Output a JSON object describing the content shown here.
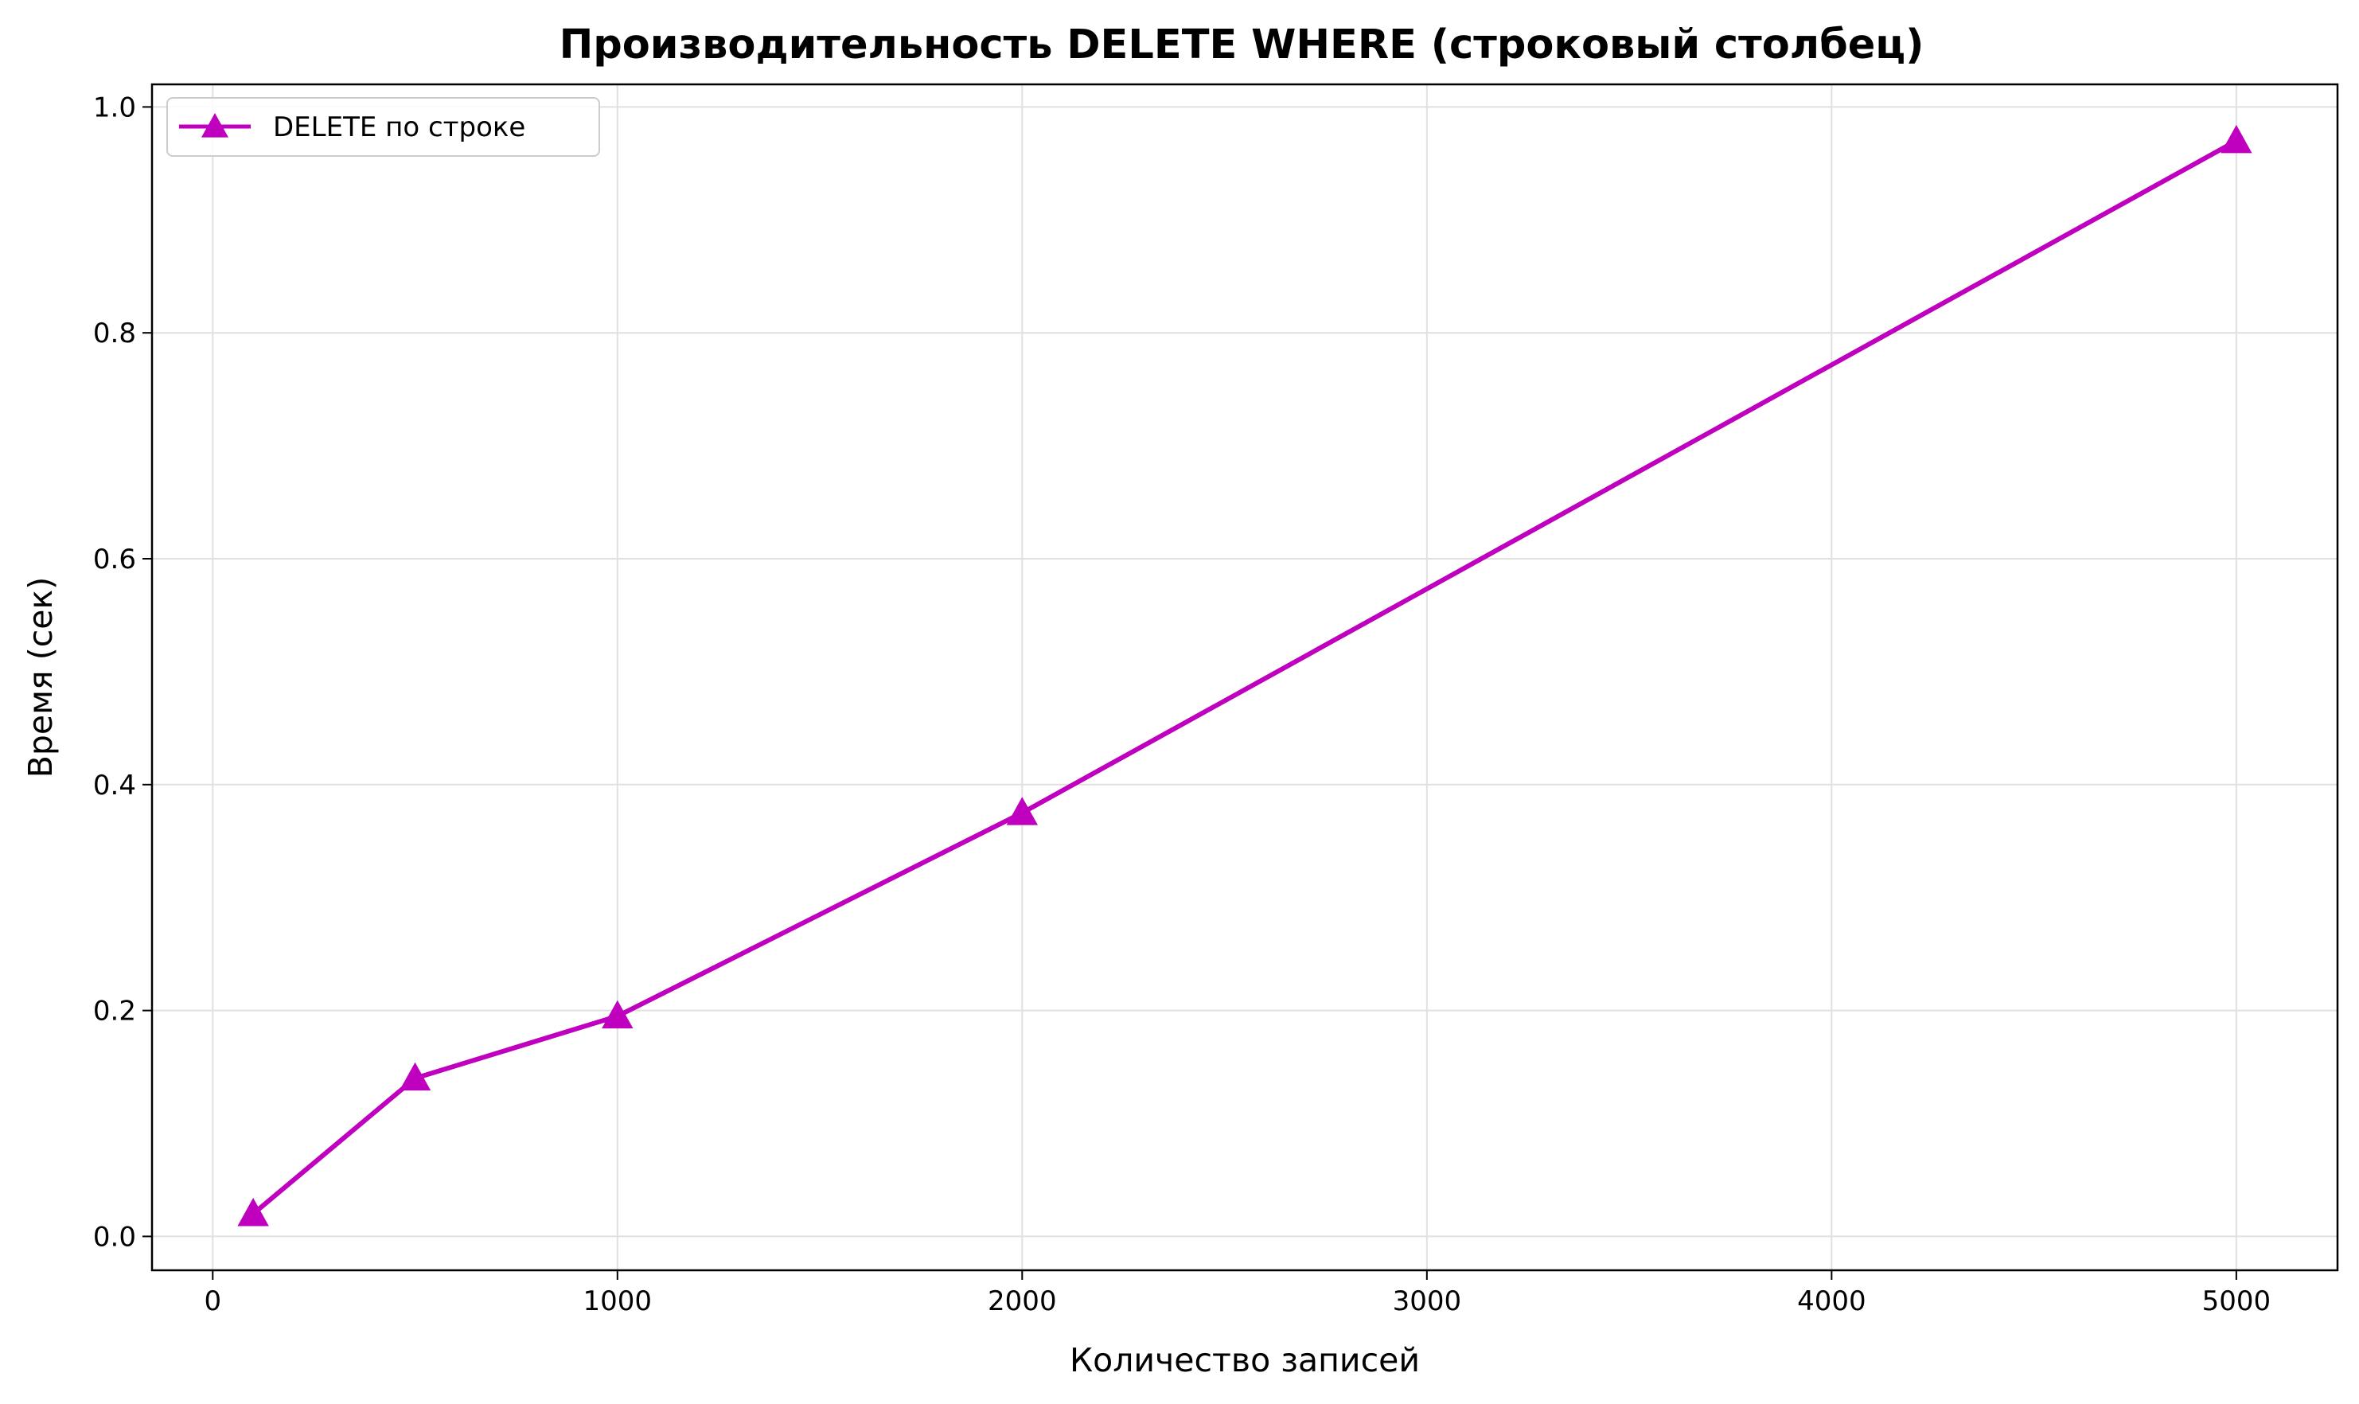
{
  "chart_data": {
    "type": "line",
    "title": "Производительность DELETE WHERE (строковый столбец)",
    "xlabel": "Количество записей",
    "ylabel": "Время (сек)",
    "xlim": [
      -150,
      5250
    ],
    "ylim": [
      -0.03,
      1.02
    ],
    "xticks": [
      0,
      1000,
      2000,
      3000,
      4000,
      5000
    ],
    "yticks": [
      0.0,
      0.2,
      0.4,
      0.6,
      0.8,
      1.0
    ],
    "xtick_labels": [
      "0",
      "1000",
      "2000",
      "3000",
      "4000",
      "5000"
    ],
    "ytick_labels": [
      "0.0",
      "0.2",
      "0.4",
      "0.6",
      "0.8",
      "1.0"
    ],
    "grid": true,
    "legend_position": "top-left",
    "series": [
      {
        "name": "DELETE по строке",
        "color": "#bf00bf",
        "marker": "triangle-up",
        "x": [
          100,
          500,
          1000,
          2000,
          5000
        ],
        "y": [
          0.02,
          0.14,
          0.195,
          0.375,
          0.97
        ]
      }
    ]
  }
}
